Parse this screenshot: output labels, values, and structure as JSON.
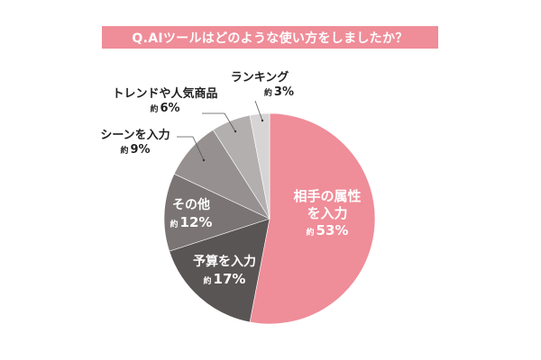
{
  "title": "Q.AIツールはどのような使い方をしましたか？",
  "colors": {
    "banner": "#ef8d99",
    "slice_1": "#ef8d99",
    "slice_2": "#5a5555",
    "slice_3": "#7b7474",
    "slice_4": "#969090",
    "slice_5": "#b3afaf",
    "slice_6": "#d7d4d5"
  },
  "labels": {
    "approx": "約",
    "s1_line1": "相手の属性",
    "s1_line2": "を入力",
    "s1_pct": "53%",
    "s2_name": "予算を入力",
    "s2_pct": "17%",
    "s3_name": "その他",
    "s3_pct": "12%",
    "s4_name": "シーンを入力",
    "s4_pct": "9%",
    "s5_name": "トレンドや人気商品",
    "s5_pct": "6%",
    "s6_name": "ランキング",
    "s6_pct": "3%"
  },
  "chart_data": {
    "type": "pie",
    "title": "Q.AIツールはどのような使い方をしましたか？",
    "categories": [
      "相手の属性を入力",
      "予算を入力",
      "その他",
      "シーンを入力",
      "トレンドや人気商品",
      "ランキング"
    ],
    "values": [
      53,
      17,
      12,
      9,
      6,
      3
    ],
    "unit": "%",
    "value_prefix": "約",
    "start_angle": "12 o'clock",
    "direction": "clockwise",
    "legend": "none (direct labels)"
  }
}
